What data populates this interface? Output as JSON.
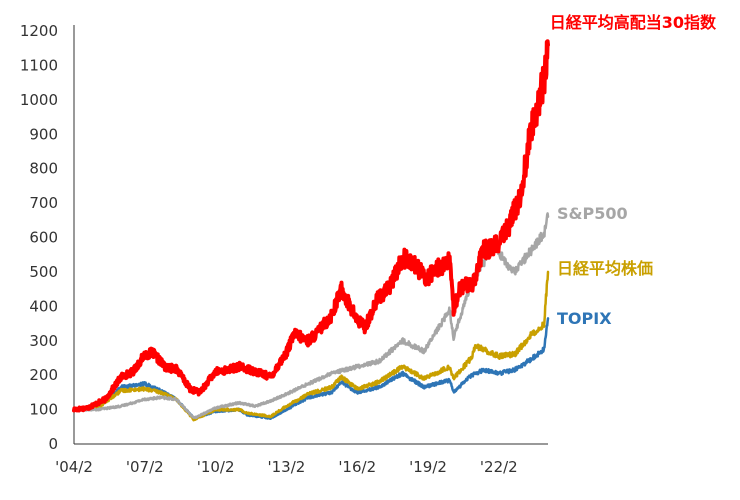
{
  "chart_data": {
    "type": "line",
    "title": "",
    "xlabel": "",
    "ylabel": "",
    "ylim": [
      0,
      1200
    ],
    "y_ticks": [
      0,
      100,
      200,
      300,
      400,
      500,
      600,
      700,
      800,
      900,
      1000,
      1100,
      1200
    ],
    "y_tick_labels": [
      "0",
      "100",
      "200",
      "300",
      "400",
      "500",
      "600",
      "700",
      "800",
      "900",
      "1000",
      "1100",
      "1200"
    ],
    "x_ticks": [
      "2004-02",
      "2007-02",
      "2010-02",
      "2013-02",
      "2016-02",
      "2019-02",
      "2022-02"
    ],
    "x_tick_labels": [
      "'04/2",
      "'07/2",
      "'10/2",
      "'13/2",
      "'16/2",
      "'19/2",
      "'22/2"
    ],
    "xlim": [
      "2004-02",
      "2024-03"
    ],
    "grid": false,
    "legend": "inline labels at right end of lines",
    "series": [
      {
        "name": "日経平均高配当30指数",
        "color": "#ff0000",
        "points": [
          [
            "2004-02",
            100
          ],
          [
            "2004-09",
            105
          ],
          [
            "2005-06",
            130
          ],
          [
            "2006-02",
            195
          ],
          [
            "2006-08",
            210
          ],
          [
            "2007-02",
            260
          ],
          [
            "2007-06",
            265
          ],
          [
            "2008-01",
            220
          ],
          [
            "2008-06",
            220
          ],
          [
            "2009-01",
            160
          ],
          [
            "2009-06",
            150
          ],
          [
            "2010-02",
            210
          ],
          [
            "2010-08",
            215
          ],
          [
            "2011-02",
            225
          ],
          [
            "2011-08",
            215
          ],
          [
            "2012-06",
            195
          ],
          [
            "2013-02",
            265
          ],
          [
            "2013-06",
            320
          ],
          [
            "2014-01",
            300
          ],
          [
            "2014-06",
            325
          ],
          [
            "2015-01",
            375
          ],
          [
            "2015-06",
            450
          ],
          [
            "2016-02",
            360
          ],
          [
            "2016-06",
            340
          ],
          [
            "2017-01",
            430
          ],
          [
            "2017-06",
            450
          ],
          [
            "2018-01",
            540
          ],
          [
            "2018-06",
            530
          ],
          [
            "2019-01",
            480
          ],
          [
            "2019-06",
            510
          ],
          [
            "2020-01",
            530
          ],
          [
            "2020-03",
            390
          ],
          [
            "2020-06",
            450
          ],
          [
            "2021-01",
            470
          ],
          [
            "2021-06",
            560
          ],
          [
            "2022-01",
            580
          ],
          [
            "2022-06",
            620
          ],
          [
            "2023-01",
            720
          ],
          [
            "2023-06",
            900
          ],
          [
            "2024-01",
            1060
          ],
          [
            "2024-03",
            1160
          ]
        ]
      },
      {
        "name": "S&P500",
        "color": "#a6a6a6",
        "points": [
          [
            "2004-02",
            100
          ],
          [
            "2005-02",
            100
          ],
          [
            "2006-02",
            110
          ],
          [
            "2007-02",
            130
          ],
          [
            "2007-10",
            135
          ],
          [
            "2008-06",
            130
          ],
          [
            "2009-03",
            75
          ],
          [
            "2010-02",
            105
          ],
          [
            "2011-02",
            120
          ],
          [
            "2011-10",
            110
          ],
          [
            "2012-06",
            125
          ],
          [
            "2013-02",
            145
          ],
          [
            "2014-01",
            175
          ],
          [
            "2015-01",
            205
          ],
          [
            "2016-02",
            225
          ],
          [
            "2017-01",
            240
          ],
          [
            "2018-01",
            300
          ],
          [
            "2018-12",
            270
          ],
          [
            "2019-06",
            325
          ],
          [
            "2020-01",
            390
          ],
          [
            "2020-03",
            310
          ],
          [
            "2020-12",
            470
          ],
          [
            "2021-12",
            580
          ],
          [
            "2022-06",
            520
          ],
          [
            "2022-10",
            500
          ],
          [
            "2023-06",
            560
          ],
          [
            "2024-01",
            610
          ],
          [
            "2024-03",
            660
          ]
        ]
      },
      {
        "name": "日経平均株価",
        "color": "#c9a000",
        "points": [
          [
            "2004-02",
            100
          ],
          [
            "2005-02",
            105
          ],
          [
            "2006-02",
            155
          ],
          [
            "2007-02",
            160
          ],
          [
            "2007-10",
            150
          ],
          [
            "2008-06",
            130
          ],
          [
            "2009-03",
            70
          ],
          [
            "2010-02",
            100
          ],
          [
            "2011-02",
            100
          ],
          [
            "2011-06",
            90
          ],
          [
            "2012-06",
            80
          ],
          [
            "2013-02",
            110
          ],
          [
            "2014-01",
            145
          ],
          [
            "2015-01",
            165
          ],
          [
            "2015-06",
            195
          ],
          [
            "2016-02",
            160
          ],
          [
            "2017-01",
            180
          ],
          [
            "2018-01",
            225
          ],
          [
            "2018-12",
            190
          ],
          [
            "2019-06",
            205
          ],
          [
            "2020-01",
            225
          ],
          [
            "2020-03",
            190
          ],
          [
            "2020-12",
            250
          ],
          [
            "2021-02",
            285
          ],
          [
            "2022-02",
            255
          ],
          [
            "2022-10",
            260
          ],
          [
            "2023-06",
            315
          ],
          [
            "2024-01",
            350
          ],
          [
            "2024-03",
            500
          ]
        ]
      },
      {
        "name": "TOPIX",
        "color": "#2e75b6",
        "points": [
          [
            "2004-02",
            100
          ],
          [
            "2005-02",
            105
          ],
          [
            "2006-02",
            165
          ],
          [
            "2007-02",
            175
          ],
          [
            "2007-10",
            155
          ],
          [
            "2008-06",
            130
          ],
          [
            "2009-03",
            75
          ],
          [
            "2010-02",
            95
          ],
          [
            "2011-02",
            100
          ],
          [
            "2011-06",
            85
          ],
          [
            "2012-06",
            75
          ],
          [
            "2013-02",
            100
          ],
          [
            "2014-01",
            135
          ],
          [
            "2015-01",
            150
          ],
          [
            "2015-06",
            180
          ],
          [
            "2016-02",
            150
          ],
          [
            "2017-01",
            165
          ],
          [
            "2018-01",
            205
          ],
          [
            "2018-12",
            165
          ],
          [
            "2019-06",
            175
          ],
          [
            "2020-01",
            185
          ],
          [
            "2020-03",
            150
          ],
          [
            "2020-12",
            200
          ],
          [
            "2021-06",
            215
          ],
          [
            "2022-02",
            205
          ],
          [
            "2022-10",
            215
          ],
          [
            "2023-06",
            245
          ],
          [
            "2024-01",
            275
          ],
          [
            "2024-03",
            365
          ]
        ]
      }
    ]
  }
}
